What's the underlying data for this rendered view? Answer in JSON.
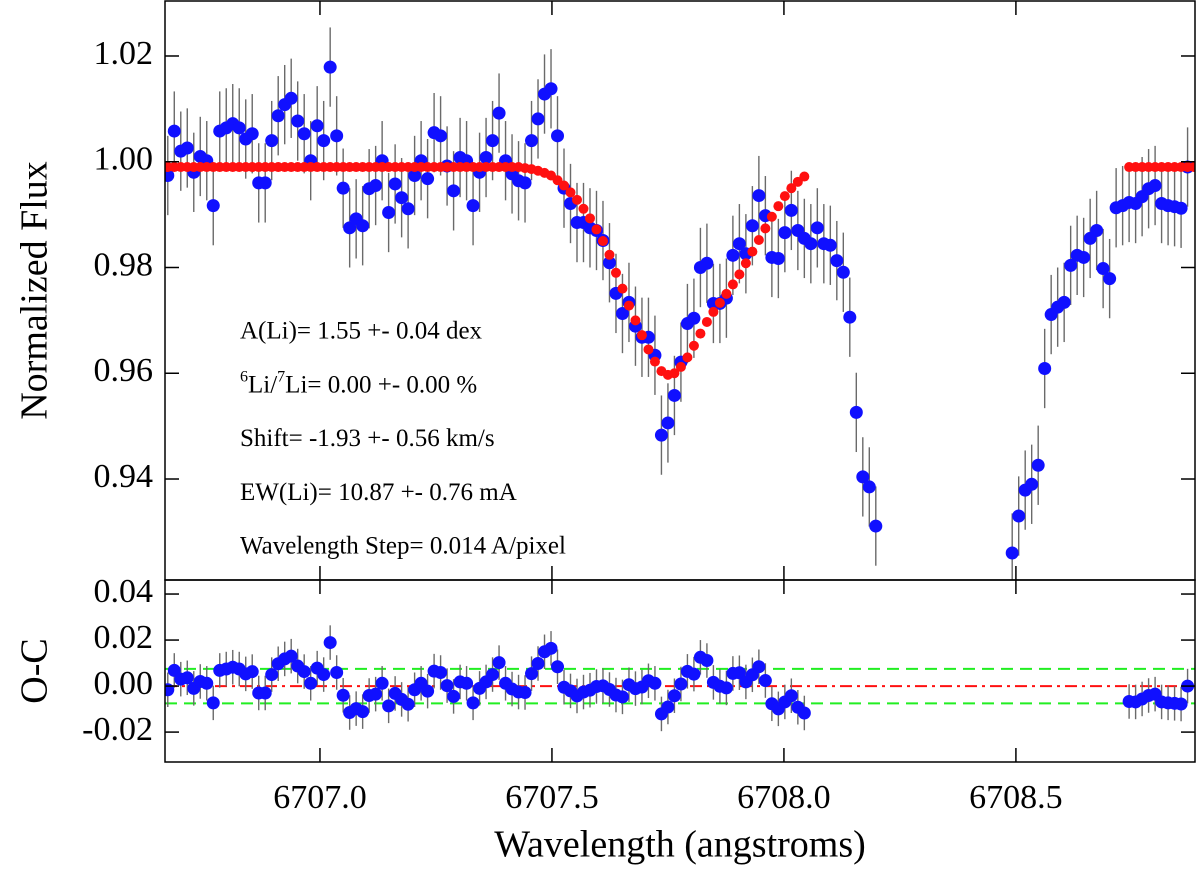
{
  "chart_data": [
    {
      "type": "scatter",
      "ylabel": "Normalized Flux",
      "xlim": [
        6706.666,
        6708.886
      ],
      "ylim": [
        0.9209,
        1.0304
      ],
      "xticks": [
        6707,
        6707.5,
        6708,
        6708.5
      ],
      "yticks": [
        1.02,
        {
          "value": 1,
          "label": "1.00"
        },
        0.98,
        0.96,
        0.94
      ],
      "annotations": [
        "A(Li)=  1.55 +- 0.04 dex",
        [
          "6",
          "Li/",
          "7",
          "Li=  0.00 +- 0.00 %"
        ],
        "Shift= -1.93 +- 0.56 km/s",
        "EW(Li)= 10.87 +- 0.76 mA",
        "Wavelength Step= 0.014 A/pixel"
      ],
      "series": [
        {
          "color": "#1010ff",
          "error": 0.0075,
          "x": [
            6706.672,
            6706.686,
            6706.7,
            6706.714,
            6706.728,
            6706.742,
            6706.756,
            6706.77,
            6706.784,
            6706.798,
            6706.812,
            6706.826,
            6706.84,
            6706.854,
            6706.868,
            6706.882,
            6706.896,
            6706.91,
            6706.924,
            6706.938,
            6706.952,
            6706.966,
            6706.98,
            6706.994,
            6707.008,
            6707.022,
            6707.036,
            6707.05,
            6707.064,
            6707.078,
            6707.092,
            6707.106,
            6707.12,
            6707.134,
            6707.148,
            6707.162,
            6707.176,
            6707.19,
            6707.204,
            6707.218,
            6707.232,
            6707.246,
            6707.26,
            6707.274,
            6707.288,
            6707.302,
            6707.316,
            6707.33,
            6707.344,
            6707.358,
            6707.372,
            6707.386,
            6707.4,
            6707.414,
            6707.428,
            6707.442,
            6707.456,
            6707.47,
            6707.484,
            6707.498,
            6707.512,
            6707.526,
            6707.54,
            6707.554,
            6707.568,
            6707.582,
            6707.596,
            6707.61,
            6707.624,
            6707.638,
            6707.652,
            6707.666,
            6707.68,
            6707.694,
            6707.708,
            6707.722,
            6707.736,
            6707.75,
            6707.764,
            6707.778,
            6707.792,
            6707.806,
            6707.82,
            6707.834,
            6707.848,
            6707.862,
            6707.876,
            6707.89,
            6707.904,
            6707.918,
            6707.932,
            6707.946,
            6707.96,
            6707.974,
            6707.988,
            6708.002,
            6708.016,
            6708.03,
            6708.044,
            6708.058,
            6708.072,
            6708.086,
            6708.1,
            6708.114,
            6708.128,
            6708.142,
            6708.156,
            6708.17,
            6708.184,
            6708.198,
            6708.492,
            6708.506,
            6708.52,
            6708.534,
            6708.548,
            6708.562,
            6708.576,
            6708.59,
            6708.604,
            6708.618,
            6708.632,
            6708.646,
            6708.66,
            6708.674,
            6708.688,
            6708.702,
            6708.716,
            6708.73,
            6708.744,
            6708.758,
            6708.772,
            6708.786,
            6708.8,
            6708.814,
            6708.828,
            6708.842,
            6708.856,
            6708.87
          ],
          "values": [
            0.9974,
            1.0058,
            1.002,
            1.0026,
            0.998,
            1.001,
            1.0002,
            0.9917,
            1.0058,
            1.0064,
            1.0072,
            1.0064,
            1.0043,
            1.0053,
            0.996,
            0.996,
            1.004,
            1.0087,
            1.0108,
            1.012,
            1.0077,
            1.0053,
            1.0002,
            1.0068,
            1.004,
            1.0179,
            1.0049,
            0.995,
            0.9875,
            0.9892,
            0.9879,
            0.9949,
            0.9955,
            1.0002,
            0.9904,
            0.9958,
            0.9932,
            0.9911,
            0.9974,
            1.0002,
            0.9968,
            1.0055,
            1.0049,
            0.9992,
            0.9945,
            1.0008,
            1.0002,
            0.9917,
            0.998,
            1.0008,
            1.004,
            1.0092,
            1.0002,
            0.9977,
            0.9964,
            0.996,
            1.004,
            1.0081,
            1.0128,
            1.0138,
            1.0049,
            0.995,
            0.9921,
            0.9885,
            0.9885,
            0.9875,
            0.987,
            0.9851,
            0.9809,
            0.9751,
            0.9713,
            0.9734,
            0.9689,
            0.9668,
            0.9668,
            0.9634,
            0.9483,
            0.9506,
            0.9558,
            0.9621,
            0.9694,
            0.9704,
            0.98,
            0.9808,
            0.9732,
            0.9732,
            0.9742,
            0.9823,
            0.9845,
            0.9826,
            0.9879,
            0.9936,
            0.9898,
            0.9819,
            0.9817,
            0.9866,
            0.9908,
            0.987,
            0.9855,
            0.9845,
            0.9875,
            0.9845,
            0.9842,
            0.9813,
            0.9791,
            0.9706,
            0.9526,
            0.9404,
            0.9385,
            0.9311,
            0.926,
            0.933,
            0.9379,
            0.939,
            0.9426,
            0.9609,
            0.9711,
            0.9725,
            0.9734,
            0.9804,
            0.9823,
            0.9819,
            0.9855,
            0.987,
            0.9798,
            0.9779,
            0.9913,
            0.9917,
            0.9923,
            0.9921,
            0.9934,
            0.9949,
            0.9955,
            0.9921,
            0.9917,
            0.9915,
            0.9912,
            0.999
          ]
        },
        {
          "color": "#ff1010",
          "x": [
            6706.672,
            6706.686,
            6706.7,
            6706.714,
            6706.728,
            6706.742,
            6706.756,
            6706.77,
            6706.784,
            6706.798,
            6706.812,
            6706.826,
            6706.84,
            6706.854,
            6706.868,
            6706.882,
            6706.896,
            6706.91,
            6706.924,
            6706.938,
            6706.952,
            6706.966,
            6706.98,
            6706.994,
            6707.008,
            6707.022,
            6707.036,
            6707.05,
            6707.064,
            6707.078,
            6707.092,
            6707.106,
            6707.12,
            6707.134,
            6707.148,
            6707.162,
            6707.176,
            6707.19,
            6707.204,
            6707.218,
            6707.232,
            6707.246,
            6707.26,
            6707.274,
            6707.288,
            6707.302,
            6707.316,
            6707.33,
            6707.344,
            6707.358,
            6707.372,
            6707.386,
            6707.4,
            6707.414,
            6707.428,
            6707.442,
            6707.456,
            6707.47,
            6707.484,
            6707.498,
            6707.512,
            6707.526,
            6707.54,
            6707.554,
            6707.568,
            6707.582,
            6707.596,
            6707.61,
            6707.624,
            6707.638,
            6707.652,
            6707.666,
            6707.68,
            6707.694,
            6707.708,
            6707.722,
            6707.736,
            6707.75,
            6707.764,
            6707.778,
            6707.792,
            6707.806,
            6707.82,
            6707.834,
            6707.848,
            6707.862,
            6707.876,
            6707.89,
            6707.904,
            6707.918,
            6707.932,
            6707.946,
            6707.96,
            6707.974,
            6707.988,
            6708.002,
            6708.016,
            6708.03,
            6708.044,
            6708.744,
            6708.758,
            6708.772,
            6708.786,
            6708.8,
            6708.814,
            6708.828,
            6708.842,
            6708.856,
            6708.87,
            6708.884
          ],
          "values": [
            0.999,
            0.999,
            0.999,
            0.999,
            0.999,
            0.999,
            0.999,
            0.999,
            0.999,
            0.999,
            0.999,
            0.999,
            0.999,
            0.999,
            0.999,
            0.999,
            0.999,
            0.999,
            0.999,
            0.999,
            0.999,
            0.999,
            0.999,
            0.999,
            0.999,
            0.999,
            0.999,
            0.999,
            0.999,
            0.999,
            0.999,
            0.999,
            0.999,
            0.999,
            0.999,
            0.999,
            0.999,
            0.999,
            0.999,
            0.999,
            0.999,
            0.999,
            0.999,
            0.999,
            0.999,
            0.999,
            0.999,
            0.999,
            0.999,
            0.999,
            0.999,
            0.999,
            0.999,
            0.999,
            0.999,
            0.9988,
            0.9986,
            0.9983,
            0.9979,
            0.9974,
            0.9965,
            0.9955,
            0.9942,
            0.9928,
            0.9911,
            0.9893,
            0.9872,
            0.985,
            0.9824,
            0.979,
            0.976,
            0.9728,
            0.97,
            0.9672,
            0.9645,
            0.9622,
            0.9604,
            0.9597,
            0.96,
            0.9612,
            0.963,
            0.9652,
            0.9675,
            0.9697,
            0.9716,
            0.9733,
            0.975,
            0.9768,
            0.9787,
            0.9808,
            0.983,
            0.9852,
            0.9874,
            0.9896,
            0.9916,
            0.9935,
            0.995,
            0.9962,
            0.9972,
            0.999,
            0.999,
            0.999,
            0.999,
            0.999,
            0.999,
            0.999,
            0.999,
            0.999,
            0.999,
            0.999
          ]
        }
      ]
    },
    {
      "type": "scatter",
      "ylabel": "O-C",
      "xlabel": "Wavelength (angstroms)",
      "xlim": [
        6706.666,
        6708.886
      ],
      "ylim": [
        -0.033,
        0.0461
      ],
      "xticks": [
        {
          "value": 6707,
          "label": "6707.0"
        },
        {
          "value": 6707.5,
          "label": "6707.5"
        },
        {
          "value": 6708,
          "label": "6708.0"
        },
        {
          "value": 6708.5,
          "label": "6708.5"
        }
      ],
      "yticks": [
        0.04,
        0.02,
        {
          "value": 0,
          "label": "0.00"
        },
        -0.02
      ],
      "hlines": [
        {
          "value": 0,
          "color": "#ff1010",
          "dash": "dashdot"
        },
        {
          "value": 0.0075,
          "color": "#22ee22",
          "dash": "dashed"
        },
        {
          "value": -0.0075,
          "color": "#22ee22",
          "dash": "dashed"
        }
      ],
      "series": [
        {
          "color": "#1010ff",
          "error": 0.0075,
          "x": [
            6706.672,
            6706.686,
            6706.7,
            6706.714,
            6706.728,
            6706.742,
            6706.756,
            6706.77,
            6706.784,
            6706.798,
            6706.812,
            6706.826,
            6706.84,
            6706.854,
            6706.868,
            6706.882,
            6706.896,
            6706.91,
            6706.924,
            6706.938,
            6706.952,
            6706.966,
            6706.98,
            6706.994,
            6707.008,
            6707.022,
            6707.036,
            6707.05,
            6707.064,
            6707.078,
            6707.092,
            6707.106,
            6707.12,
            6707.134,
            6707.148,
            6707.162,
            6707.176,
            6707.19,
            6707.204,
            6707.218,
            6707.232,
            6707.246,
            6707.26,
            6707.274,
            6707.288,
            6707.302,
            6707.316,
            6707.33,
            6707.344,
            6707.358,
            6707.372,
            6707.386,
            6707.4,
            6707.414,
            6707.428,
            6707.442,
            6707.456,
            6707.47,
            6707.484,
            6707.498,
            6707.512,
            6707.526,
            6707.54,
            6707.554,
            6707.568,
            6707.582,
            6707.596,
            6707.61,
            6707.624,
            6707.638,
            6707.652,
            6707.666,
            6707.68,
            6707.694,
            6707.708,
            6707.722,
            6707.736,
            6707.75,
            6707.764,
            6707.778,
            6707.792,
            6707.806,
            6707.82,
            6707.834,
            6707.848,
            6707.862,
            6707.876,
            6707.89,
            6707.904,
            6707.918,
            6707.932,
            6707.946,
            6707.96,
            6707.974,
            6707.988,
            6708.002,
            6708.016,
            6708.03,
            6708.044,
            6708.744,
            6708.758,
            6708.772,
            6708.786,
            6708.8,
            6708.814,
            6708.828,
            6708.842,
            6708.856,
            6708.87
          ],
          "values": [
            -0.0016,
            0.0068,
            0.003,
            0.0036,
            -0.001,
            0.002,
            0.0012,
            -0.0073,
            0.0068,
            0.0074,
            0.0082,
            0.0074,
            0.0053,
            0.0063,
            -0.003,
            -0.003,
            0.005,
            0.0097,
            0.0118,
            0.013,
            0.0087,
            0.0063,
            0.0012,
            0.0078,
            0.005,
            0.0189,
            0.0059,
            -0.004,
            -0.0115,
            -0.0098,
            -0.0111,
            -0.0041,
            -0.0035,
            0.0012,
            -0.0086,
            -0.0032,
            -0.0058,
            -0.0079,
            -0.0016,
            0.0012,
            -0.0022,
            0.0065,
            0.0059,
            0.0002,
            -0.0045,
            0.0018,
            0.0012,
            -0.0073,
            -0.001,
            0.0018,
            0.005,
            0.0102,
            0.0012,
            -0.0013,
            -0.0026,
            -0.0028,
            0.0054,
            0.0098,
            0.0149,
            0.0164,
            0.0084,
            -0.0005,
            -0.0021,
            -0.0043,
            -0.0026,
            -0.0018,
            -0.0002,
            0.0001,
            -0.0015,
            -0.0039,
            -0.0047,
            0.0006,
            -0.0011,
            -0.0004,
            0.0023,
            0.0012,
            -0.0121,
            -0.0091,
            -0.0042,
            0.0009,
            0.0064,
            0.0052,
            0.0125,
            0.0111,
            0.0016,
            -0.0001,
            -0.0008,
            0.0055,
            0.0058,
            0.0018,
            0.0049,
            0.0084,
            0.0024,
            -0.0077,
            -0.0099,
            -0.0069,
            -0.0042,
            -0.0092,
            -0.0117,
            -0.0067,
            -0.0069,
            -0.0056,
            -0.0041,
            -0.0035,
            -0.0069,
            -0.0073,
            -0.0075,
            -0.0078,
            0
          ]
        }
      ]
    }
  ]
}
